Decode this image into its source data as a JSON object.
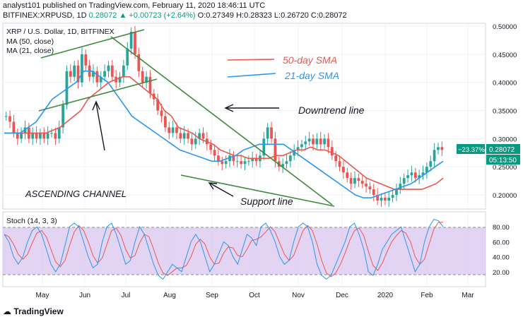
{
  "header": {
    "line1": "analyst101 published on TradingView.com, February 11, 2020 18:46:11 UTC",
    "symbol": "BITFINEX:XRPUSD, 1D",
    "price": "0.28072",
    "change": "▲ +0.00723 (+2.64%)",
    "ohlc": "O:0.27349 H:0.28323 L:0.26720 C:0.28072"
  },
  "brand": {
    "name": "TradingView"
  },
  "chart_data": {
    "type": "candlestick",
    "title": "XRP / U.S. Dollar, 1D, BITFINEX",
    "legend": [
      "MA (50, close)",
      "MA (21, close)"
    ],
    "x_labels": [
      "May",
      "Jun",
      "Jul",
      "Aug",
      "Sep",
      "Oct",
      "Nov",
      "Dec",
      "2020",
      "Feb",
      "Mar"
    ],
    "y_ticks": [
      "0.50000",
      "0.45000",
      "0.40000",
      "0.35000",
      "0.30000",
      "0.25000",
      "0.20000"
    ],
    "ylim": [
      0.175,
      0.505
    ],
    "last_price_label": "0.28072",
    "change_label": "−23.37%",
    "countdown_label": "05:13:50",
    "close_series": [
      0.34,
      0.33,
      0.31,
      0.3,
      0.31,
      0.32,
      0.3,
      0.31,
      0.3,
      0.31,
      0.3,
      0.31,
      0.31,
      0.3,
      0.32,
      0.36,
      0.42,
      0.41,
      0.43,
      0.4,
      0.45,
      0.43,
      0.41,
      0.42,
      0.4,
      0.41,
      0.42,
      0.43,
      0.41,
      0.4,
      0.41,
      0.43,
      0.46,
      0.49,
      0.45,
      0.42,
      0.4,
      0.41,
      0.38,
      0.37,
      0.35,
      0.34,
      0.32,
      0.31,
      0.32,
      0.31,
      0.3,
      0.31,
      0.3,
      0.29,
      0.3,
      0.31,
      0.3,
      0.29,
      0.28,
      0.27,
      0.26,
      0.255,
      0.26,
      0.27,
      0.26,
      0.26,
      0.255,
      0.26,
      0.26,
      0.265,
      0.26,
      0.27,
      0.3,
      0.32,
      0.3,
      0.26,
      0.25,
      0.255,
      0.26,
      0.27,
      0.28,
      0.285,
      0.29,
      0.295,
      0.3,
      0.29,
      0.3,
      0.29,
      0.3,
      0.285,
      0.27,
      0.26,
      0.25,
      0.24,
      0.23,
      0.22,
      0.23,
      0.225,
      0.22,
      0.215,
      0.21,
      0.2,
      0.19,
      0.195,
      0.19,
      0.195,
      0.2,
      0.21,
      0.22,
      0.23,
      0.235,
      0.24,
      0.23,
      0.235,
      0.24,
      0.25,
      0.26,
      0.28,
      0.285,
      0.28
    ],
    "sma50": [
      0.31,
      0.31,
      0.31,
      0.31,
      0.31,
      0.31,
      0.31,
      0.315,
      0.32,
      0.33,
      0.34,
      0.35,
      0.37,
      0.38,
      0.39,
      0.4,
      0.405,
      0.41,
      0.41,
      0.4,
      0.39,
      0.38,
      0.37,
      0.35,
      0.34,
      0.32,
      0.315,
      0.31,
      0.3,
      0.295,
      0.29,
      0.28,
      0.275,
      0.27,
      0.27,
      0.265,
      0.265,
      0.265,
      0.265,
      0.27,
      0.27,
      0.275,
      0.28,
      0.28,
      0.285,
      0.28,
      0.28,
      0.275,
      0.27,
      0.26,
      0.25,
      0.24,
      0.23,
      0.225,
      0.22,
      0.215,
      0.21,
      0.21,
      0.21,
      0.21,
      0.21,
      0.215,
      0.22,
      0.23
    ],
    "sma21": [
      0.31,
      0.31,
      0.31,
      0.32,
      0.33,
      0.35,
      0.37,
      0.38,
      0.39,
      0.4,
      0.42,
      0.42,
      0.41,
      0.4,
      0.38,
      0.36,
      0.34,
      0.33,
      0.32,
      0.31,
      0.3,
      0.29,
      0.28,
      0.275,
      0.27,
      0.265,
      0.26,
      0.26,
      0.265,
      0.27,
      0.28,
      0.285,
      0.29,
      0.29,
      0.29,
      0.29,
      0.28,
      0.27,
      0.26,
      0.25,
      0.24,
      0.23,
      0.22,
      0.21,
      0.2,
      0.195,
      0.195,
      0.2,
      0.205,
      0.21,
      0.215,
      0.22,
      0.23,
      0.24,
      0.25
    ],
    "annotations": [
      "50-day SMA",
      "21-day SMA",
      "Downtrend line",
      "Support line",
      "ASCENDING CHANNEL"
    ],
    "oscillator": {
      "title": "Stoch (14, 3, 3)",
      "y_ticks": [
        "80.00",
        "60.00",
        "40.00",
        "20.00"
      ],
      "ylim": [
        0,
        100
      ],
      "upper_band": 80,
      "lower_band": 20,
      "k_series": [
        70,
        60,
        40,
        30,
        40,
        60,
        75,
        80,
        70,
        50,
        30,
        20,
        30,
        55,
        80,
        85,
        80,
        60,
        40,
        25,
        30,
        60,
        80,
        85,
        70,
        50,
        30,
        35,
        60,
        80,
        70,
        50,
        30,
        15,
        10,
        20,
        30,
        25,
        20,
        40,
        60,
        70,
        60,
        40,
        20,
        30,
        45,
        60,
        55,
        40,
        30,
        50,
        70,
        65,
        55,
        80,
        85,
        75,
        60,
        40,
        30,
        35,
        60,
        80,
        85,
        80,
        60,
        30,
        15,
        10,
        15,
        30,
        45,
        60,
        80,
        85,
        70,
        50,
        20,
        15,
        30,
        50,
        60,
        70,
        75,
        80,
        60,
        40,
        20,
        30,
        60,
        80,
        90,
        88,
        80
      ]
    }
  }
}
